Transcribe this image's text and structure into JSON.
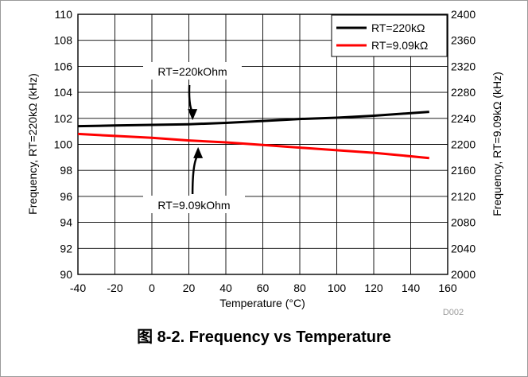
{
  "chart_data": {
    "type": "line",
    "caption": "图 8-2. Frequency vs Temperature",
    "xlabel": "Temperature (°C)",
    "ylabel_left": "Frequency, RT=220kΩ (kHz)",
    "ylabel_right": "Frequency, RT=9.09kΩ (kHz)",
    "xlim": [
      -40,
      160
    ],
    "ylim_left": [
      90,
      110
    ],
    "ylim_right": [
      2000,
      2400
    ],
    "x_ticks": [
      "-40",
      "-20",
      "0",
      "20",
      "40",
      "60",
      "80",
      "100",
      "120",
      "140",
      "160"
    ],
    "y_left_ticks": [
      "90",
      "92",
      "94",
      "96",
      "98",
      "100",
      "102",
      "104",
      "106",
      "108",
      "110"
    ],
    "y_right_ticks": [
      "2000",
      "2040",
      "2080",
      "2120",
      "2160",
      "2200",
      "2240",
      "2280",
      "2320",
      "2360",
      "2400"
    ],
    "grid": true,
    "legend_position": "top-right",
    "series": [
      {
        "name": "RT=220kΩ",
        "axis": "left",
        "color": "#000000",
        "x": [
          -40,
          -20,
          0,
          20,
          40,
          60,
          80,
          100,
          120,
          150
        ],
        "values": [
          101.4,
          101.45,
          101.5,
          101.55,
          101.65,
          101.8,
          101.95,
          102.05,
          102.2,
          102.5
        ]
      },
      {
        "name": "RT=9.09kΩ",
        "axis": "right",
        "color": "#ff0000",
        "x": [
          -40,
          -20,
          0,
          20,
          40,
          60,
          80,
          100,
          120,
          150
        ],
        "values": [
          2216,
          2213,
          2210,
          2206,
          2203,
          2199,
          2195,
          2191,
          2187,
          2179
        ]
      }
    ],
    "annotations": [
      {
        "text": "RT=220kOhm",
        "points_to_x": 22,
        "points_to_y": 101.55,
        "axis": "left"
      },
      {
        "text": "RT=9.09kOhm",
        "points_to_x": 25,
        "points_to_y": 100.1,
        "axis": "left"
      }
    ],
    "code": "D002"
  }
}
